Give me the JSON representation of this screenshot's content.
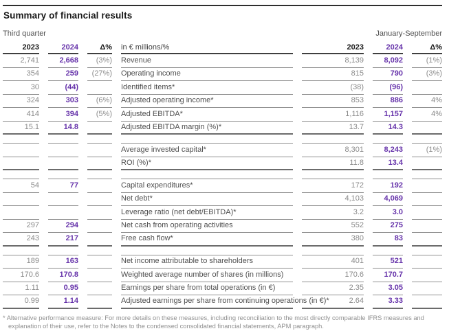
{
  "title": "Summary of financial results",
  "periods": {
    "left": "Third quarter",
    "right": "January-September"
  },
  "table": {
    "headers": [
      "2023",
      "2024",
      "Δ%",
      "in € millions/%",
      "2023",
      "2024",
      "Δ%"
    ],
    "rows": [
      {
        "label": "Revenue",
        "q2023": "2,741",
        "q2024": "2,668",
        "qdelta": "(3%)",
        "n2023": "8,139",
        "n2024": "8,092",
        "ndelta": "(1%)",
        "end": false
      },
      {
        "label": "Operating income",
        "q2023": "354",
        "q2024": "259",
        "qdelta": "(27%)",
        "n2023": "815",
        "n2024": "790",
        "ndelta": "(3%)",
        "end": false
      },
      {
        "label": "Identified items*",
        "q2023": "30",
        "q2024": "(44)",
        "qdelta": "",
        "n2023": "(38)",
        "n2024": "(96)",
        "ndelta": "",
        "end": false
      },
      {
        "label": "Adjusted operating income*",
        "q2023": "324",
        "q2024": "303",
        "qdelta": "(6%)",
        "n2023": "853",
        "n2024": "886",
        "ndelta": "4%",
        "end": false
      },
      {
        "label": "Adjusted EBITDA*",
        "q2023": "414",
        "q2024": "394",
        "qdelta": "(5%)",
        "n2023": "1,116",
        "n2024": "1,157",
        "ndelta": "4%",
        "end": false
      },
      {
        "label": "Adjusted EBITDA margin (%)*",
        "q2023": "15.1",
        "q2024": "14.8",
        "qdelta": "",
        "n2023": "13.7",
        "n2024": "14.3",
        "ndelta": "",
        "end": true
      },
      {
        "spacer": true
      },
      {
        "label": "Average invested capital*",
        "q2023": "",
        "q2024": "",
        "qdelta": "",
        "n2023": "8,301",
        "n2024": "8,243",
        "ndelta": "(1%)",
        "end": false
      },
      {
        "label": "ROI (%)*",
        "q2023": "",
        "q2024": "",
        "qdelta": "",
        "n2023": "11.8",
        "n2024": "13.4",
        "ndelta": "",
        "end": true
      },
      {
        "spacer": true
      },
      {
        "label": "Capital expenditures*",
        "q2023": "54",
        "q2024": "77",
        "qdelta": "",
        "n2023": "172",
        "n2024": "192",
        "ndelta": "",
        "end": false
      },
      {
        "label": "Net debt*",
        "q2023": "",
        "q2024": "",
        "qdelta": "",
        "n2023": "4,103",
        "n2024": "4,069",
        "ndelta": "",
        "end": false
      },
      {
        "label": "Leverage ratio (net debt/EBITDA)*",
        "q2023": "",
        "q2024": "",
        "qdelta": "",
        "n2023": "3.2",
        "n2024": "3.0",
        "ndelta": "",
        "end": false
      },
      {
        "label": "Net cash from operating activities",
        "q2023": "297",
        "q2024": "294",
        "qdelta": "",
        "n2023": "552",
        "n2024": "275",
        "ndelta": "",
        "end": false
      },
      {
        "label": "Free cash flow*",
        "q2023": "243",
        "q2024": "217",
        "qdelta": "",
        "n2023": "380",
        "n2024": "83",
        "ndelta": "",
        "end": true
      },
      {
        "spacer": true
      },
      {
        "label": "Net income attributable to shareholders",
        "q2023": "189",
        "q2024": "163",
        "qdelta": "",
        "n2023": "401",
        "n2024": "521",
        "ndelta": "",
        "end": false
      },
      {
        "label": "Weighted average number of shares (in millions)",
        "q2023": "170.6",
        "q2024": "170.8",
        "qdelta": "",
        "n2023": "170.6",
        "n2024": "170.7",
        "ndelta": "",
        "end": false
      },
      {
        "label": "Earnings per share from total operations (in €)",
        "q2023": "1.11",
        "q2024": "0.95",
        "qdelta": "",
        "n2023": "2.35",
        "n2024": "3.05",
        "ndelta": "",
        "end": false
      },
      {
        "label": "Adjusted earnings per share from continuing operations (in €)*",
        "q2023": "0.99",
        "q2024": "1.14",
        "qdelta": "",
        "n2023": "2.64",
        "n2024": "3.33",
        "ndelta": "",
        "end": true
      }
    ]
  },
  "footnote": "* Alternative performance measure: For more details on these measures, including reconciliation to the most directly comparable IFRS measures and explanation of their use, refer to the Notes to the condensed consolidated financial statements, APM paragraph.",
  "colors": {
    "accent_purple": "#6633aa",
    "value_gray": "#8a8a8a",
    "label_gray": "#4f4f4f"
  }
}
